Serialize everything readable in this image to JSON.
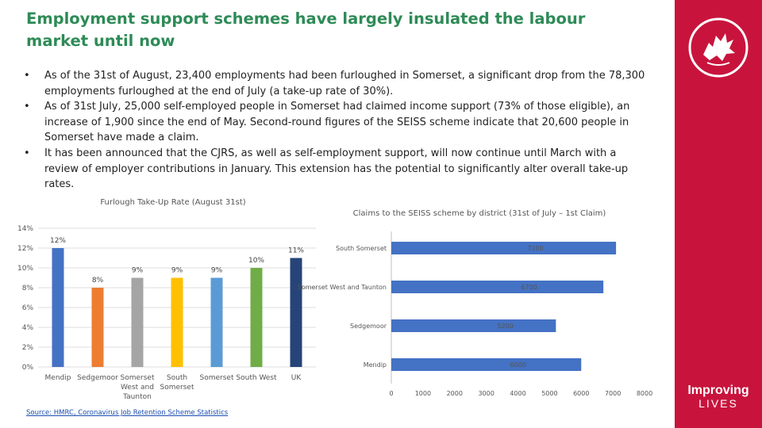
{
  "title": "Employment support schemes have largely insulated the labour market until now",
  "bullets": [
    "As of the 31st of August, 23,400 employments had been furloughed in Somerset, a significant drop from the 78,300 employments furloughed at the end of July (a take-up rate of 30%).",
    "As of 31st July, 25,000 self-employed people in Somerset had claimed income support (73% of those eligible), an increase of 1,900 since the end of May. Second-round figures of the SEISS scheme indicate that 20,600 people in Somerset have made a claim.",
    "It has been announced that the CJRS, as well as self-employment support, will now continue until March with a review of employer contributions in January. This extension has the potential to significantly alter overall take-up rates."
  ],
  "brand": {
    "line1": "Improving",
    "line2": "LIVES"
  },
  "colors": {
    "title": "#2e8b57",
    "sidebar": "#c8143c"
  },
  "source": "Source: HMRC, Coronavirus Job Retention Scheme Statistics",
  "chart_data": [
    {
      "type": "bar",
      "title": "Furlough Take-Up Rate (August 31st)",
      "categories": [
        "Mendip",
        "Sedgemoor",
        "Somerset West and Taunton",
        "South Somerset",
        "Somerset",
        "South West",
        "UK"
      ],
      "values": [
        12,
        8,
        9,
        9,
        9,
        10,
        11
      ],
      "value_labels": [
        "12%",
        "8%",
        "9%",
        "9%",
        "9%",
        "10%",
        "11%"
      ],
      "colors": [
        "#4472c4",
        "#ed7d31",
        "#a5a5a5",
        "#ffc000",
        "#5b9bd5",
        "#70ad47",
        "#264478"
      ],
      "yticks": [
        "0%",
        "2%",
        "4%",
        "6%",
        "8%",
        "10%",
        "12%",
        "14%"
      ],
      "ylim": [
        0,
        14
      ],
      "grid": true
    },
    {
      "type": "bar",
      "orientation": "horizontal",
      "title": "Claims to the SEISS scheme by district (31st of July – 1st Claim)",
      "categories": [
        "South Somerset",
        "Somerset West and Taunton",
        "Sedgemoor",
        "Mendip"
      ],
      "values": [
        7100,
        6700,
        5200,
        6000
      ],
      "value_labels": [
        "7100",
        "6700",
        "5200",
        "6000"
      ],
      "color": "#4472c4",
      "xticks": [
        "0",
        "1000",
        "2000",
        "3000",
        "4000",
        "5000",
        "6000",
        "7000",
        "8000"
      ],
      "xlim": [
        0,
        8000
      ]
    }
  ]
}
